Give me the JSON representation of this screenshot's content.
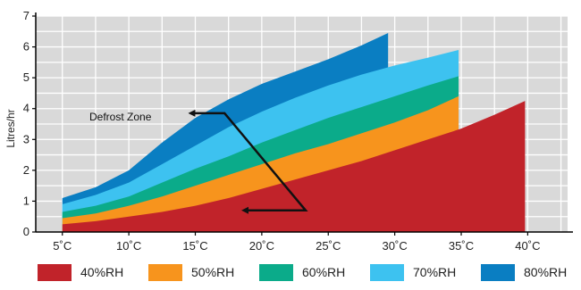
{
  "chart_data": {
    "type": "area",
    "title": "",
    "xlabel": "",
    "ylabel": "Litres/hr",
    "x": [
      5,
      10,
      15,
      20,
      25,
      30,
      35,
      40
    ],
    "x_tick_labels": [
      "5˚C",
      "10˚C",
      "15˚C",
      "20˚C",
      "25˚C",
      "30˚C",
      "35˚C",
      "40˚C"
    ],
    "y_ticks": [
      0,
      1,
      2,
      3,
      4,
      5,
      6,
      7
    ],
    "xlim": [
      3,
      43
    ],
    "ylim": [
      0,
      7
    ],
    "grid": true,
    "legend": "bottom",
    "series": [
      {
        "name": "80%RH",
        "color": "#0a7ec2",
        "points": [
          [
            5,
            1.1
          ],
          [
            7.5,
            1.45
          ],
          [
            10,
            2.0
          ],
          [
            12.5,
            2.9
          ],
          [
            15,
            3.7
          ],
          [
            17.5,
            4.3
          ],
          [
            20,
            4.8
          ],
          [
            22.5,
            5.2
          ],
          [
            25,
            5.6
          ],
          [
            27.5,
            6.05
          ],
          [
            29.5,
            6.45
          ]
        ]
      },
      {
        "name": "70%RH",
        "color": "#3dc2f0",
        "points": [
          [
            5,
            0.9
          ],
          [
            7.5,
            1.2
          ],
          [
            10,
            1.6
          ],
          [
            12.5,
            2.2
          ],
          [
            15,
            2.8
          ],
          [
            17.5,
            3.4
          ],
          [
            20,
            3.9
          ],
          [
            22.5,
            4.35
          ],
          [
            25,
            4.75
          ],
          [
            27.5,
            5.1
          ],
          [
            30,
            5.4
          ],
          [
            32.5,
            5.65
          ],
          [
            34.8,
            5.9
          ]
        ]
      },
      {
        "name": "60%RH",
        "color": "#0bab8a",
        "points": [
          [
            5,
            0.65
          ],
          [
            7.5,
            0.85
          ],
          [
            10,
            1.15
          ],
          [
            12.5,
            1.6
          ],
          [
            15,
            2.05
          ],
          [
            17.5,
            2.45
          ],
          [
            20,
            2.9
          ],
          [
            22.5,
            3.3
          ],
          [
            25,
            3.7
          ],
          [
            27.5,
            4.05
          ],
          [
            30,
            4.4
          ],
          [
            32.5,
            4.75
          ],
          [
            34.8,
            5.05
          ]
        ]
      },
      {
        "name": "50%RH",
        "color": "#f7941d",
        "points": [
          [
            5,
            0.45
          ],
          [
            7.5,
            0.6
          ],
          [
            10,
            0.85
          ],
          [
            12.5,
            1.15
          ],
          [
            15,
            1.5
          ],
          [
            17.5,
            1.85
          ],
          [
            20,
            2.2
          ],
          [
            22.5,
            2.55
          ],
          [
            25,
            2.85
          ],
          [
            27.5,
            3.2
          ],
          [
            30,
            3.55
          ],
          [
            32.5,
            3.95
          ],
          [
            34.8,
            4.4
          ]
        ]
      },
      {
        "name": "40%RH",
        "color": "#c1232a",
        "points": [
          [
            5,
            0.25
          ],
          [
            7.5,
            0.35
          ],
          [
            10,
            0.5
          ],
          [
            12.5,
            0.65
          ],
          [
            15,
            0.85
          ],
          [
            17.5,
            1.1
          ],
          [
            20,
            1.4
          ],
          [
            22.5,
            1.7
          ],
          [
            25,
            2.0
          ],
          [
            27.5,
            2.3
          ],
          [
            30,
            2.65
          ],
          [
            32.5,
            3.0
          ],
          [
            35,
            3.35
          ],
          [
            37.5,
            3.8
          ],
          [
            39.8,
            4.25
          ]
        ]
      }
    ],
    "annotation": {
      "label": "Defrost Zone"
    }
  }
}
